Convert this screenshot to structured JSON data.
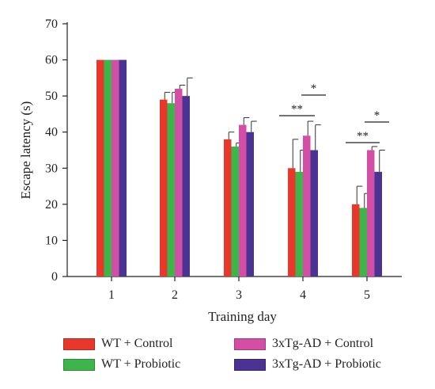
{
  "chart_data": {
    "type": "bar",
    "title": "",
    "xlabel": "Training day",
    "ylabel": "Escape latency (s)",
    "ylim": [
      0,
      70
    ],
    "yticks": [
      "0",
      "10",
      "20",
      "30",
      "40",
      "50",
      "60",
      "70"
    ],
    "categories": [
      "1",
      "2",
      "3",
      "4",
      "5"
    ],
    "grid": false,
    "legend_position": "bottom",
    "series": [
      {
        "name": "WT + Control",
        "color": "#e8382b",
        "values": [
          60,
          49,
          38,
          30,
          20
        ],
        "errors": [
          0,
          2,
          2,
          8,
          5
        ]
      },
      {
        "name": "WT + Probiotic",
        "color": "#3db54a",
        "values": [
          60,
          48,
          36,
          29,
          19
        ],
        "errors": [
          0,
          3,
          1,
          6,
          4
        ]
      },
      {
        "name": "3xTg-AD + Control",
        "color": "#d34fa6",
        "values": [
          60,
          52,
          42,
          39,
          35
        ],
        "errors": [
          0,
          1,
          2,
          4,
          1
        ]
      },
      {
        "name": "3xTg-AD + Probiotic",
        "color": "#4b3393",
        "values": [
          60,
          50,
          40,
          35,
          29
        ],
        "errors": [
          0,
          5,
          3,
          7,
          6
        ]
      }
    ],
    "annotations": [
      {
        "day": "4",
        "from_series": 0,
        "to_series": 2,
        "label": "**"
      },
      {
        "day": "4",
        "from_series": 2,
        "to_series": 3,
        "label": "*"
      },
      {
        "day": "5",
        "from_series": 0,
        "to_series": 2,
        "label": "**"
      },
      {
        "day": "5",
        "from_series": 2,
        "to_series": 3,
        "label": "*"
      }
    ]
  }
}
